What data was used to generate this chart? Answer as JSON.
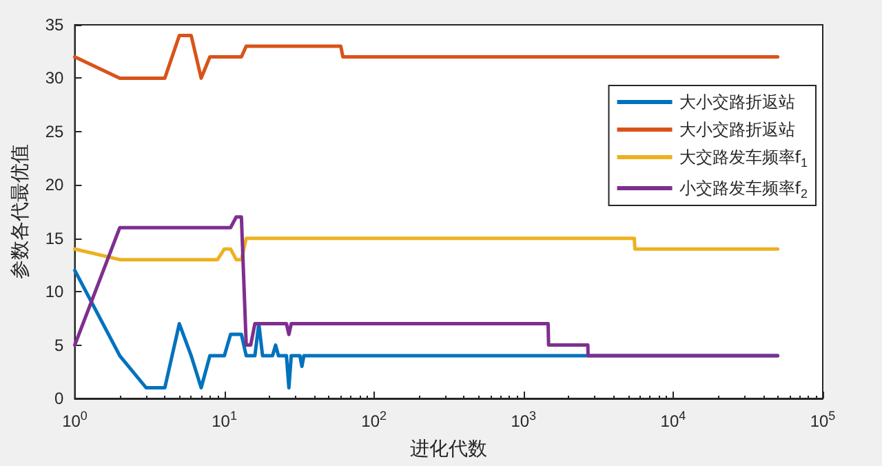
{
  "chart_data": {
    "type": "line",
    "xlabel": "进化代数",
    "ylabel": "参数各代最优值",
    "log": "x",
    "xlim": [
      1,
      100000
    ],
    "ylim": [
      0,
      35
    ],
    "xticks": [
      {
        "value": 1,
        "label": "10$^{0}$"
      },
      {
        "value": 10,
        "label": "10$^{1}$"
      },
      {
        "value": 100,
        "label": "10$^{2}$"
      },
      {
        "value": 1000,
        "label": "10$^{3}$"
      },
      {
        "value": 10000,
        "label": "10$^{4}$"
      },
      {
        "value": 100000,
        "label": "10$^{5}$"
      }
    ],
    "yticks": [
      0,
      5,
      10,
      15,
      20,
      25,
      30,
      35
    ],
    "grid": false,
    "legend": "top right",
    "marker": "none",
    "line_style": "solid",
    "series": [
      {
        "name": "大小交路折返站",
        "color": "#0072bd",
        "x": [
          1,
          2,
          3,
          4,
          5,
          6,
          7,
          8,
          10,
          11,
          13,
          14,
          16,
          17,
          18,
          21,
          22,
          23,
          26,
          27,
          28,
          32,
          33,
          34,
          50000
        ],
        "values": [
          12,
          4,
          1,
          1,
          7,
          4,
          1,
          4,
          4,
          6,
          6,
          4,
          4,
          7,
          4,
          4,
          5,
          4,
          4,
          1,
          4,
          4,
          3,
          4,
          4
        ]
      },
      {
        "name": "大小交路折返站",
        "color": "#d95319",
        "x": [
          1,
          2,
          4,
          5,
          6,
          7,
          8,
          13,
          14,
          60,
          62,
          50000
        ],
        "values": [
          32,
          30,
          30,
          34,
          34,
          30,
          32,
          32,
          33,
          33,
          32,
          32
        ]
      },
      {
        "name": "大交路发车频率f$_{1}$",
        "color": "#edb120",
        "x": [
          1,
          2,
          9,
          10,
          11,
          12,
          13,
          14,
          5500,
          5550,
          50000
        ],
        "values": [
          14,
          13,
          13,
          14,
          14,
          13,
          13,
          15,
          15,
          14,
          14
        ]
      },
      {
        "name": "小交路发车频率f$_{2}$",
        "color": "#7e2f8e",
        "x": [
          1,
          2,
          11,
          12,
          13,
          14,
          15,
          16,
          26,
          27,
          28,
          1460,
          1470,
          2690,
          2700,
          50000
        ],
        "values": [
          5,
          16,
          16,
          17,
          17,
          5,
          5,
          7,
          7,
          6,
          7,
          7,
          5,
          5,
          4,
          4
        ]
      }
    ]
  }
}
